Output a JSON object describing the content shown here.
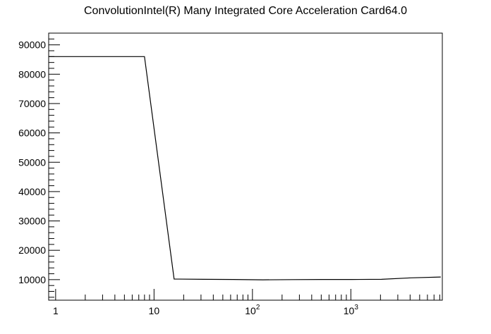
{
  "chart_data": {
    "type": "line",
    "title": "ConvolutionIntel(R) Many Integrated Core Acceleration Card64.0",
    "xlabel": "",
    "ylabel": "",
    "x_scale": "log",
    "xlim": [
      0.85,
      8500
    ],
    "ylim": [
      3000,
      94000
    ],
    "grid": false,
    "x_ticks": [
      {
        "value": 1,
        "base": "1",
        "exp": ""
      },
      {
        "value": 10,
        "base": "10",
        "exp": ""
      },
      {
        "value": 100,
        "base": "10",
        "exp": "2"
      },
      {
        "value": 1000,
        "base": "10",
        "exp": "3"
      }
    ],
    "y_ticks": [
      10000,
      20000,
      30000,
      40000,
      50000,
      60000,
      70000,
      80000,
      90000
    ],
    "series": [
      {
        "color": "#000000",
        "x": [
          0.85,
          8,
          16,
          32,
          64,
          128,
          256,
          512,
          1024,
          2048,
          4096,
          8192
        ],
        "y": [
          86000,
          86000,
          10200,
          10100,
          10050,
          9950,
          10000,
          10050,
          10050,
          10100,
          10600,
          10900
        ]
      }
    ]
  }
}
